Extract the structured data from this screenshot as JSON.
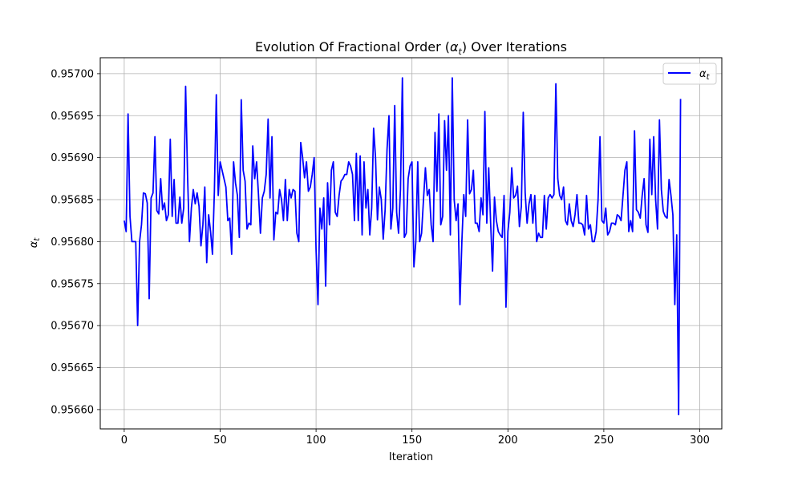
{
  "chart_data": {
    "type": "line",
    "title_prefix": "Evolution Of Fractional Order (",
    "title_symbol": "α",
    "title_sub": "t",
    "title_suffix": ") Over Iterations",
    "xlabel": "Iteration",
    "ylabel_symbol": "α",
    "ylabel_sub": "t",
    "xlim": [
      -12.5,
      311.5
    ],
    "ylim": [
      0.956577,
      0.957019
    ],
    "x_ticks": [
      0,
      50,
      100,
      150,
      200,
      250,
      300
    ],
    "y_ticks": [
      0.9566,
      0.95665,
      0.9567,
      0.95675,
      0.9568,
      0.95685,
      0.9569,
      0.95695,
      0.957
    ],
    "y_tick_labels": [
      "0.95660",
      "0.95665",
      "0.95670",
      "0.95675",
      "0.95680",
      "0.95685",
      "0.95690",
      "0.95695",
      "0.95700"
    ],
    "grid": true,
    "legend_position": "top-right",
    "series": [
      {
        "name_symbol": "α",
        "name_sub": "t",
        "color": "#0000ff",
        "x_start": 0,
        "values": [
          0.956825,
          0.956812,
          0.956952,
          0.95683,
          0.9568,
          0.9568,
          0.9568,
          0.9567,
          0.9568,
          0.95682,
          0.956858,
          0.956857,
          0.956846,
          0.956732,
          0.956852,
          0.956858,
          0.956925,
          0.956837,
          0.956833,
          0.956875,
          0.956838,
          0.956846,
          0.956825,
          0.956832,
          0.956922,
          0.95683,
          0.956874,
          0.956822,
          0.956822,
          0.956853,
          0.956822,
          0.95684,
          0.956985,
          0.95688,
          0.9568,
          0.95684,
          0.956862,
          0.956845,
          0.956858,
          0.956842,
          0.956795,
          0.95682,
          0.956865,
          0.956775,
          0.956832,
          0.956812,
          0.956785,
          0.95686,
          0.956975,
          0.956855,
          0.956895,
          0.956885,
          0.956875,
          0.956865,
          0.956825,
          0.956828,
          0.956785,
          0.956895,
          0.95687,
          0.956855,
          0.956805,
          0.956969,
          0.956885,
          0.956872,
          0.956815,
          0.956822,
          0.95682,
          0.956914,
          0.956875,
          0.956895,
          0.956855,
          0.95681,
          0.956852,
          0.95686,
          0.95688,
          0.956946,
          0.956852,
          0.956925,
          0.956802,
          0.956835,
          0.956833,
          0.956862,
          0.95685,
          0.956825,
          0.956874,
          0.956825,
          0.956862,
          0.956852,
          0.956862,
          0.95686,
          0.95681,
          0.9568,
          0.956918,
          0.9569,
          0.956876,
          0.956895,
          0.95686,
          0.956865,
          0.95688,
          0.9569,
          0.95679,
          0.956725,
          0.95684,
          0.956815,
          0.956852,
          0.956747,
          0.95687,
          0.95682,
          0.956885,
          0.956895,
          0.956835,
          0.95683,
          0.956855,
          0.956872,
          0.956875,
          0.95688,
          0.95688,
          0.956895,
          0.95689,
          0.95688,
          0.956825,
          0.956905,
          0.956825,
          0.956902,
          0.956808,
          0.956895,
          0.95684,
          0.956862,
          0.956808,
          0.95684,
          0.956935,
          0.9569,
          0.956826,
          0.956865,
          0.95685,
          0.956803,
          0.956838,
          0.95691,
          0.95695,
          0.956815,
          0.95684,
          0.956962,
          0.956835,
          0.95681,
          0.956862,
          0.956995,
          0.956805,
          0.95681,
          0.956875,
          0.95689,
          0.956895,
          0.95677,
          0.9568,
          0.956895,
          0.9568,
          0.95681,
          0.95685,
          0.956888,
          0.956855,
          0.956862,
          0.95682,
          0.9568,
          0.95693,
          0.95686,
          0.956952,
          0.95682,
          0.95683,
          0.956944,
          0.956885,
          0.95695,
          0.956808,
          0.956995,
          0.95685,
          0.956825,
          0.956845,
          0.956725,
          0.9568,
          0.956856,
          0.95683,
          0.956945,
          0.956857,
          0.956862,
          0.956885,
          0.956822,
          0.956822,
          0.956812,
          0.956852,
          0.956832,
          0.956955,
          0.956822,
          0.956888,
          0.956822,
          0.956765,
          0.956853,
          0.956825,
          0.956812,
          0.956808,
          0.956805,
          0.956855,
          0.956722,
          0.956812,
          0.956835,
          0.956888,
          0.956852,
          0.956855,
          0.956866,
          0.956818,
          0.956842,
          0.956954,
          0.956858,
          0.956822,
          0.956845,
          0.956856,
          0.956822,
          0.956855,
          0.9568,
          0.95681,
          0.956805,
          0.956805,
          0.956855,
          0.956815,
          0.956852,
          0.956856,
          0.956852,
          0.956856,
          0.956988,
          0.956875,
          0.956855,
          0.95685,
          0.956865,
          0.956825,
          0.95682,
          0.956845,
          0.956825,
          0.956818,
          0.956832,
          0.956856,
          0.956822,
          0.956822,
          0.95682,
          0.956808,
          0.956855,
          0.956815,
          0.95682,
          0.9568,
          0.9568,
          0.956812,
          0.95685,
          0.956925,
          0.956825,
          0.956822,
          0.95684,
          0.956808,
          0.956812,
          0.956822,
          0.956822,
          0.95682,
          0.956832,
          0.95683,
          0.956825,
          0.956855,
          0.956885,
          0.956895,
          0.956812,
          0.956825,
          0.956812,
          0.956932,
          0.956838,
          0.956835,
          0.956828,
          0.956855,
          0.956875,
          0.95682,
          0.956811,
          0.956922,
          0.956856,
          0.956925,
          0.95685,
          0.956815,
          0.956945,
          0.956862,
          0.956836,
          0.95683,
          0.956828,
          0.956874,
          0.956855,
          0.956832,
          0.956725,
          0.956808,
          0.956594,
          0.95697
        ]
      }
    ]
  }
}
